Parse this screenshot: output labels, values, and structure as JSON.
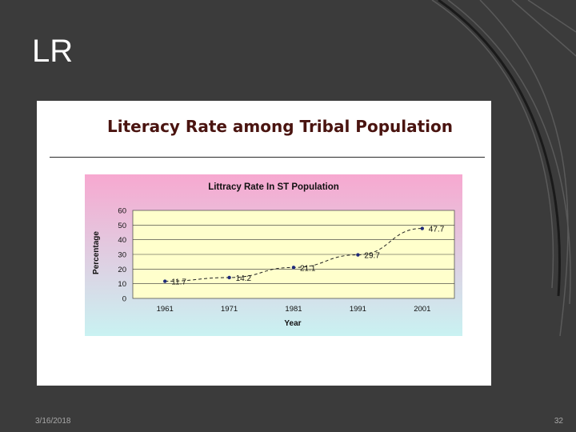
{
  "slide": {
    "title": "LR",
    "date": "3/16/2018",
    "page_number": "32"
  },
  "figure": {
    "heading": "Literacy Rate among Tribal Population"
  },
  "chart_data": {
    "type": "line",
    "title": "Littracy Rate In ST Population",
    "xlabel": "Year",
    "ylabel": "Percentage",
    "categories": [
      "1961",
      "1971",
      "1981",
      "1991",
      "2001"
    ],
    "series": [
      {
        "values": [
          11.7,
          14.2,
          21.1,
          29.7,
          47.7
        ],
        "data_labels": [
          "11.7",
          "14.2",
          "21.1",
          "29.7",
          "47.7"
        ]
      }
    ],
    "ylim": [
      0,
      60
    ],
    "yticks": [
      0,
      10,
      20,
      30,
      40,
      50,
      60
    ],
    "grid": true,
    "trendline": true,
    "colors": {
      "line": "#1f2a7a",
      "marker": "#1f2a7a",
      "plot_area": "#ffffcc",
      "background_top": "#f7a8d0",
      "background_bottom": "#c9f2f2"
    }
  }
}
